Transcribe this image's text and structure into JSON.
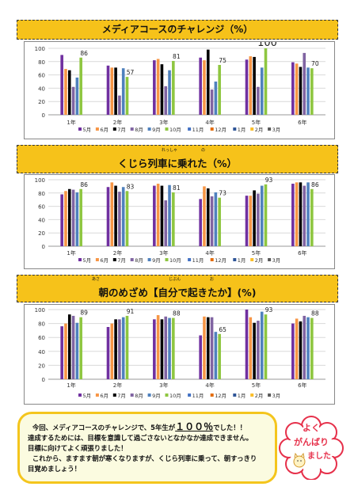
{
  "charts": [
    {
      "title": "メディアコースのチャレンジ（%）",
      "chart_data": {
        "type": "bar",
        "categories": [
          "1年",
          "2年",
          "3年",
          "4年",
          "5年",
          "6年"
        ],
        "series_names": [
          "5月",
          "6月",
          "7月",
          "8月",
          "9月",
          "10月",
          "11月",
          "12月",
          "1月",
          "2月",
          "3月"
        ],
        "values": [
          [
            90,
            69,
            67,
            42,
            56,
            86
          ],
          [
            74,
            71,
            71,
            29,
            70,
            57
          ],
          [
            82,
            84,
            76,
            43,
            67,
            81
          ],
          [
            86,
            82,
            98,
            38,
            50,
            75
          ],
          [
            83,
            88,
            87,
            42,
            71,
            100
          ],
          [
            79,
            77,
            72,
            93,
            71,
            70
          ]
        ],
        "labels": [
          "86",
          "57",
          "81",
          "75",
          "100",
          "70"
        ],
        "ylim": [
          0,
          100
        ],
        "yticks": [
          0,
          20,
          40,
          60,
          80,
          100
        ]
      }
    },
    {
      "title": "くじら列車に乗れた（%）",
      "furigana": [
        "れっしゃ",
        "の"
      ],
      "chart_data": {
        "type": "bar",
        "categories": [
          "1年",
          "2年",
          "3年",
          "4年",
          "5年",
          "6年"
        ],
        "series_names": [
          "5月",
          "6月",
          "7月",
          "8月",
          "9月",
          "10月",
          "11月",
          "12月",
          "1月",
          "2月",
          "3月"
        ],
        "values": [
          [
            78,
            83,
            86,
            85,
            81,
            86
          ],
          [
            89,
            96,
            91,
            82,
            89,
            83
          ],
          [
            91,
            94,
            91,
            69,
            92,
            81
          ],
          [
            71,
            90,
            87,
            75,
            81,
            73
          ],
          [
            76,
            76,
            84,
            79,
            91,
            93
          ],
          [
            94,
            96,
            96,
            91,
            96,
            86
          ]
        ],
        "labels": [
          "86",
          "83",
          "81",
          "73",
          "93",
          "86"
        ],
        "ylim": [
          0,
          100
        ],
        "yticks": [
          0,
          20,
          40,
          60,
          80,
          100
        ]
      }
    },
    {
      "title": "朝のめざめ【自分で起きたか】(%)",
      "furigana": [
        "あさ",
        "じぶん",
        "お"
      ],
      "chart_data": {
        "type": "bar",
        "categories": [
          "1年",
          "2年",
          "3年",
          "4年",
          "5年",
          "6年"
        ],
        "series_names": [
          "5月",
          "6月",
          "7月",
          "8月",
          "9月",
          "10月",
          "11月",
          "12月",
          "1月",
          "2月",
          "3月"
        ],
        "values": [
          [
            76,
            80,
            93,
            91,
            81,
            89
          ],
          [
            75,
            80,
            86,
            86,
            89,
            91
          ],
          [
            86,
            92,
            86,
            90,
            88,
            88
          ],
          [
            63,
            90,
            89,
            89,
            68,
            65
          ],
          [
            100,
            89,
            81,
            84,
            97,
            93
          ],
          [
            80,
            87,
            83,
            91,
            89,
            88
          ]
        ],
        "labels": [
          "89",
          "91",
          "88",
          "65",
          "93",
          "88"
        ],
        "ylim": [
          0,
          100
        ],
        "yticks": [
          0,
          20,
          40,
          60,
          80,
          100
        ]
      }
    }
  ],
  "colors": [
    "#7030a0",
    "#f79646",
    "#000000",
    "#8064a2",
    "#4f81bd",
    "#8ec640",
    "#4472c4",
    "#e36c0a",
    "#2f5597",
    "#fbbf2b",
    "#5a5a5a"
  ],
  "message": {
    "line1a": "今回、メディアコースのチャレンジで、5年生が",
    "line1b": "１００％",
    "line1c": "でした！！",
    "line2": "達成するためには、目標を意識して過ごさないとなかなか達成できません。",
    "line3": "目標に向けてよく頑張りました！",
    "line4": "これから、ますます朝が寒くなりますが、くじら列車に乗って、朝すっきり",
    "line5": "目覚めましょう！"
  },
  "stamp": {
    "text1": "よく",
    "text2": "がんばり",
    "text3": "ました"
  }
}
